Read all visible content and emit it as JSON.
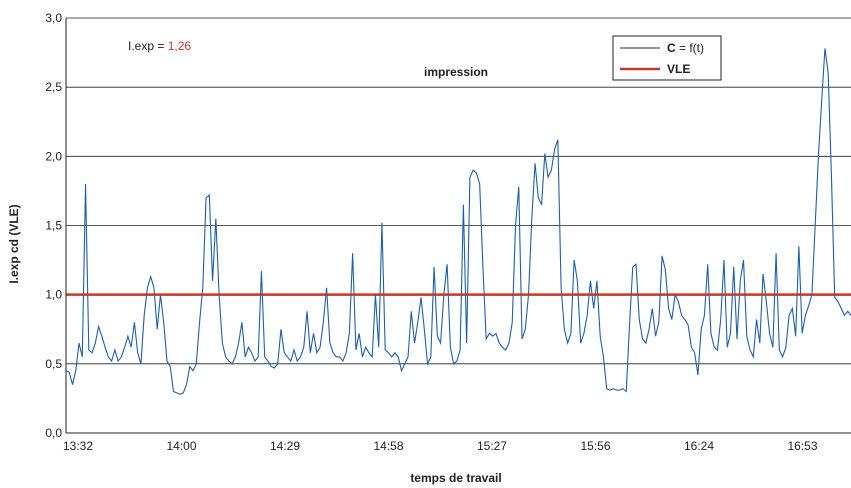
{
  "chart_data": {
    "type": "line",
    "title": "impression",
    "xlabel": "temps de travail",
    "ylabel": "I.exp cd (VLE)",
    "ylim": [
      0,
      3
    ],
    "y_ticks": [
      "0,0",
      "0,5",
      "1,0",
      "1,5",
      "2,0",
      "2,5",
      "3,0"
    ],
    "x_ticks": [
      "13:32",
      "14:00",
      "14:29",
      "14:58",
      "15:27",
      "15:56",
      "16:24",
      "16:53"
    ],
    "grid": true,
    "legend_position": "top-right",
    "annotation": {
      "label": "I.exp = ",
      "value": "1,26"
    },
    "reference_line": {
      "label": "VLE",
      "value": 1.0,
      "color": "#c0392b"
    },
    "series": [
      {
        "name_bold": "C",
        "name_rest": " = f(t)",
        "color": "#1f5fa8",
        "points": [
          [
            0,
            0.45
          ],
          [
            1,
            0.44
          ],
          [
            2,
            0.35
          ],
          [
            3,
            0.45
          ],
          [
            4,
            0.65
          ],
          [
            5,
            0.55
          ],
          [
            6,
            1.8
          ],
          [
            7,
            0.6
          ],
          [
            8,
            0.58
          ],
          [
            9,
            0.65
          ],
          [
            10,
            0.77
          ],
          [
            11,
            0.7
          ],
          [
            12,
            0.62
          ],
          [
            13,
            0.55
          ],
          [
            14,
            0.52
          ],
          [
            15,
            0.6
          ],
          [
            16,
            0.52
          ],
          [
            17,
            0.55
          ],
          [
            18,
            0.62
          ],
          [
            19,
            0.7
          ],
          [
            20,
            0.62
          ],
          [
            21,
            0.8
          ],
          [
            22,
            0.58
          ],
          [
            23,
            0.5
          ],
          [
            24,
            0.85
          ],
          [
            25,
            1.05
          ],
          [
            26,
            1.13
          ],
          [
            27,
            1.05
          ],
          [
            28,
            0.75
          ],
          [
            29,
            1.0
          ],
          [
            30,
            0.8
          ],
          [
            31,
            0.52
          ],
          [
            32,
            0.48
          ],
          [
            33,
            0.3
          ],
          [
            34,
            0.29
          ],
          [
            35,
            0.28
          ],
          [
            36,
            0.29
          ],
          [
            37,
            0.35
          ],
          [
            38,
            0.48
          ],
          [
            39,
            0.45
          ],
          [
            40,
            0.5
          ],
          [
            41,
            0.8
          ],
          [
            42,
            1.05
          ],
          [
            43,
            1.7
          ],
          [
            44,
            1.72
          ],
          [
            45,
            1.1
          ],
          [
            46,
            1.55
          ],
          [
            47,
            1.0
          ],
          [
            48,
            0.65
          ],
          [
            49,
            0.55
          ],
          [
            50,
            0.52
          ],
          [
            51,
            0.5
          ],
          [
            52,
            0.55
          ],
          [
            53,
            0.65
          ],
          [
            54,
            0.8
          ],
          [
            55,
            0.55
          ],
          [
            56,
            0.62
          ],
          [
            57,
            0.58
          ],
          [
            58,
            0.52
          ],
          [
            59,
            0.55
          ],
          [
            60,
            1.17
          ],
          [
            61,
            0.55
          ],
          [
            62,
            0.52
          ],
          [
            63,
            0.48
          ],
          [
            64,
            0.47
          ],
          [
            65,
            0.5
          ],
          [
            66,
            0.75
          ],
          [
            67,
            0.58
          ],
          [
            68,
            0.55
          ],
          [
            69,
            0.52
          ],
          [
            70,
            0.6
          ],
          [
            71,
            0.52
          ],
          [
            72,
            0.55
          ],
          [
            73,
            0.62
          ],
          [
            74,
            0.88
          ],
          [
            75,
            0.58
          ],
          [
            76,
            0.72
          ],
          [
            77,
            0.58
          ],
          [
            78,
            0.62
          ],
          [
            79,
            0.8
          ],
          [
            80,
            1.05
          ],
          [
            81,
            0.65
          ],
          [
            82,
            0.58
          ],
          [
            83,
            0.55
          ],
          [
            84,
            0.55
          ],
          [
            85,
            0.52
          ],
          [
            86,
            0.58
          ],
          [
            87,
            0.72
          ],
          [
            88,
            1.3
          ],
          [
            89,
            0.6
          ],
          [
            90,
            0.72
          ],
          [
            91,
            0.55
          ],
          [
            92,
            0.62
          ],
          [
            93,
            0.58
          ],
          [
            94,
            0.55
          ],
          [
            95,
            1.0
          ],
          [
            96,
            0.62
          ],
          [
            97,
            1.52
          ],
          [
            98,
            0.6
          ],
          [
            99,
            0.58
          ],
          [
            100,
            0.55
          ],
          [
            101,
            0.58
          ],
          [
            102,
            0.55
          ],
          [
            103,
            0.45
          ],
          [
            104,
            0.5
          ],
          [
            105,
            0.55
          ],
          [
            106,
            0.88
          ],
          [
            107,
            0.65
          ],
          [
            108,
            0.8
          ],
          [
            109,
            0.98
          ],
          [
            110,
            0.75
          ],
          [
            111,
            0.5
          ],
          [
            112,
            0.55
          ],
          [
            113,
            1.2
          ],
          [
            114,
            0.7
          ],
          [
            115,
            0.65
          ],
          [
            116,
            1.0
          ],
          [
            117,
            1.22
          ],
          [
            118,
            0.62
          ],
          [
            119,
            0.5
          ],
          [
            120,
            0.52
          ],
          [
            121,
            0.6
          ],
          [
            122,
            1.65
          ],
          [
            123,
            0.65
          ],
          [
            124,
            1.85
          ],
          [
            125,
            1.9
          ],
          [
            126,
            1.88
          ],
          [
            127,
            1.8
          ],
          [
            128,
            1.2
          ],
          [
            129,
            0.68
          ],
          [
            130,
            0.72
          ],
          [
            131,
            0.7
          ],
          [
            132,
            0.72
          ],
          [
            133,
            0.65
          ],
          [
            134,
            0.62
          ],
          [
            135,
            0.6
          ],
          [
            136,
            0.65
          ],
          [
            137,
            0.8
          ],
          [
            138,
            1.5
          ],
          [
            139,
            1.78
          ],
          [
            140,
            0.68
          ],
          [
            141,
            0.75
          ],
          [
            142,
            1.0
          ],
          [
            143,
            1.55
          ],
          [
            144,
            1.95
          ],
          [
            145,
            1.7
          ],
          [
            146,
            1.65
          ],
          [
            147,
            2.02
          ],
          [
            148,
            1.85
          ],
          [
            149,
            1.9
          ],
          [
            150,
            2.05
          ],
          [
            151,
            2.12
          ],
          [
            152,
            1.05
          ],
          [
            153,
            0.75
          ],
          [
            154,
            0.65
          ],
          [
            155,
            0.72
          ],
          [
            156,
            1.25
          ],
          [
            157,
            1.1
          ],
          [
            158,
            0.65
          ],
          [
            159,
            0.72
          ],
          [
            160,
            0.85
          ],
          [
            161,
            1.1
          ],
          [
            162,
            0.9
          ],
          [
            163,
            1.1
          ],
          [
            164,
            0.7
          ],
          [
            165,
            0.55
          ],
          [
            166,
            0.32
          ],
          [
            167,
            0.31
          ],
          [
            168,
            0.32
          ],
          [
            169,
            0.31
          ],
          [
            170,
            0.31
          ],
          [
            171,
            0.32
          ],
          [
            172,
            0.3
          ],
          [
            173,
            0.78
          ],
          [
            174,
            1.2
          ],
          [
            175,
            1.22
          ],
          [
            176,
            0.82
          ],
          [
            177,
            0.68
          ],
          [
            178,
            0.65
          ],
          [
            179,
            0.75
          ],
          [
            180,
            0.9
          ],
          [
            181,
            0.7
          ],
          [
            182,
            0.8
          ],
          [
            183,
            1.28
          ],
          [
            184,
            1.18
          ],
          [
            185,
            0.9
          ],
          [
            186,
            0.82
          ],
          [
            187,
            1.0
          ],
          [
            188,
            0.95
          ],
          [
            189,
            0.85
          ],
          [
            190,
            0.82
          ],
          [
            191,
            0.78
          ],
          [
            192,
            0.62
          ],
          [
            193,
            0.58
          ],
          [
            194,
            0.42
          ],
          [
            195,
            0.75
          ],
          [
            196,
            0.85
          ],
          [
            197,
            1.22
          ],
          [
            198,
            0.72
          ],
          [
            199,
            0.62
          ],
          [
            200,
            0.6
          ],
          [
            201,
            0.82
          ],
          [
            202,
            1.25
          ],
          [
            203,
            0.62
          ],
          [
            204,
            0.72
          ],
          [
            205,
            1.2
          ],
          [
            206,
            0.68
          ],
          [
            207,
            1.1
          ],
          [
            208,
            1.25
          ],
          [
            209,
            0.7
          ],
          [
            210,
            0.6
          ],
          [
            211,
            0.55
          ],
          [
            212,
            0.82
          ],
          [
            213,
            0.65
          ],
          [
            214,
            1.15
          ],
          [
            215,
            0.95
          ],
          [
            216,
            0.72
          ],
          [
            217,
            0.62
          ],
          [
            218,
            1.3
          ],
          [
            219,
            0.6
          ],
          [
            220,
            0.55
          ],
          [
            221,
            0.62
          ],
          [
            222,
            0.85
          ],
          [
            223,
            0.9
          ],
          [
            224,
            0.7
          ],
          [
            225,
            1.35
          ],
          [
            226,
            0.72
          ],
          [
            227,
            0.85
          ],
          [
            228,
            0.92
          ],
          [
            229,
            1.0
          ],
          [
            230,
            1.5
          ],
          [
            231,
            2.0
          ],
          [
            232,
            2.4
          ],
          [
            233,
            2.78
          ],
          [
            234,
            2.6
          ],
          [
            235,
            1.85
          ],
          [
            236,
            0.98
          ],
          [
            237,
            0.95
          ],
          [
            238,
            0.9
          ],
          [
            239,
            0.85
          ],
          [
            240,
            0.88
          ],
          [
            241,
            0.85
          ]
        ]
      }
    ]
  }
}
